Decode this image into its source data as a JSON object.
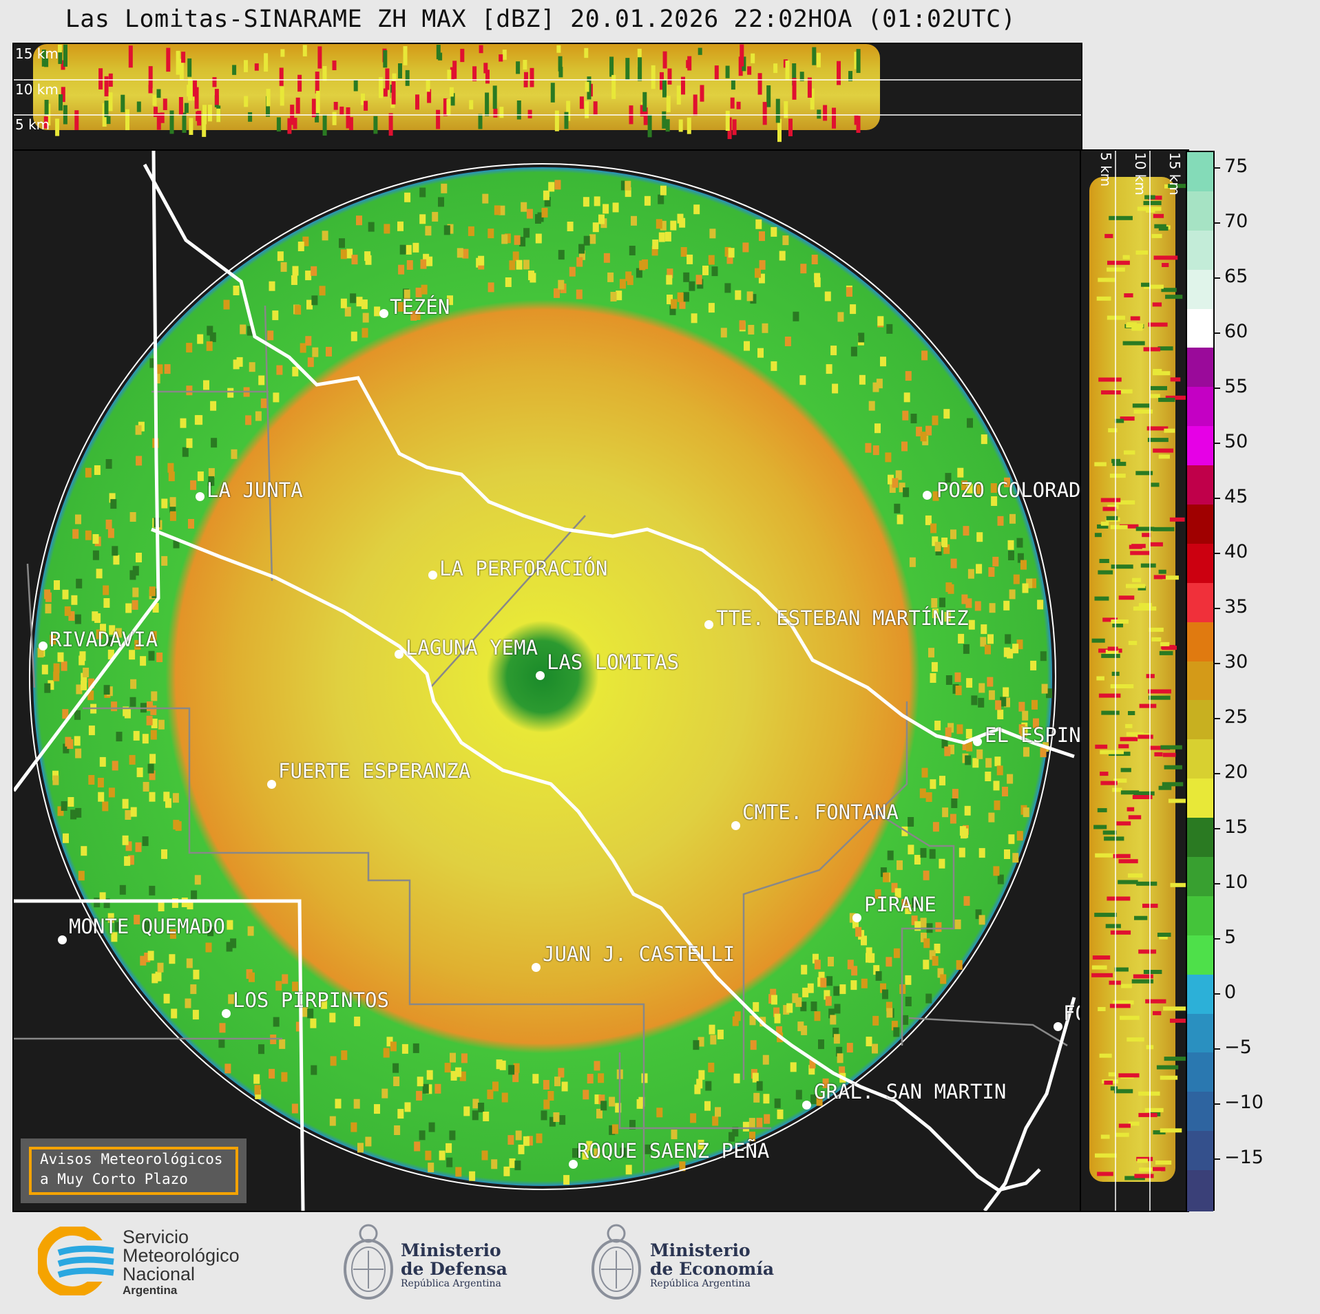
{
  "title": "Las Lomitas-SINARAME ZH MAX [dBZ] 20.01.2026 22:02HOA (01:02UTC)",
  "height_labels": {
    "h15": "15 km",
    "h10": "10 km",
    "h5": "5 km"
  },
  "cities": {
    "tezen": "TEZÉN",
    "la_junta": "LA JUNTA",
    "pozo_colorado": "POZO COLORAD",
    "la_perforacion": "LA PERFORACIÓN",
    "tte_esteban": "TTE. ESTEBAN MARTÍNEZ",
    "rivadavia": "RIVADAVIA",
    "laguna_yema": "LAGUNA YEMA",
    "las_lomitas": "LAS LOMITAS",
    "el_espin": "EL ESPIN",
    "fuerte_esperanza": "FUERTE ESPERANZA",
    "cmte_fontana": "CMTE. FONTANA",
    "pirane": "PIRANE",
    "monte_quemado": "MONTE QUEMADO",
    "juan_castelli": "JUAN J. CASTELLI",
    "los_pirpintos": "LOS PIRPINTOS",
    "gral_san_martin": "GRAL. SAN MARTIN",
    "roque_saenz_pena": "ROQUE SAENZ PEÑA",
    "fo": "FO"
  },
  "avisos": {
    "line1": "Avisos Meteorológicos",
    "line2": "a Muy Corto Plazo"
  },
  "colorbar": {
    "unit": "dBZ",
    "ticks": [
      "75",
      "70",
      "65",
      "60",
      "55",
      "50",
      "45",
      "40",
      "35",
      "30",
      "25",
      "20",
      "15",
      "10",
      "5",
      "0",
      "−5",
      "−10",
      "−15"
    ],
    "colors": [
      "#84dbb8",
      "#a6e3c4",
      "#c3ecd8",
      "#e0f4ea",
      "#ffffff",
      "#9a0a9a",
      "#c400c4",
      "#e600e6",
      "#c0004a",
      "#a00000",
      "#cc0010",
      "#f0303a",
      "#e07a10",
      "#d49a18",
      "#c8b020",
      "#d8d030",
      "#e8e838",
      "#2a7a22",
      "#38a030",
      "#44c43a",
      "#4ee04a",
      "#2cb0d8",
      "#2a90c0",
      "#2a78b0",
      "#2e64a0",
      "#34508c",
      "#3a4078"
    ]
  },
  "logos": {
    "smn": {
      "line1": "Servicio",
      "line2": "Meteorológico",
      "line3": "Nacional",
      "line4": "Argentina"
    },
    "defensa": {
      "line1": "Ministerio",
      "line2": "de Defensa",
      "line3": "República Argentina"
    },
    "economia": {
      "line1": "Ministerio",
      "line2": "de Economía",
      "line3": "República Argentina"
    }
  }
}
